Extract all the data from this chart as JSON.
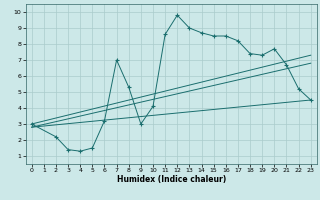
{
  "xlabel": "Humidex (Indice chaleur)",
  "bg_color": "#cce8e8",
  "grid_color": "#aacccc",
  "line_color": "#1a6e6e",
  "xlim": [
    -0.5,
    23.5
  ],
  "ylim": [
    0.5,
    10.5
  ],
  "xticks": [
    0,
    1,
    2,
    3,
    4,
    5,
    6,
    7,
    8,
    9,
    10,
    11,
    12,
    13,
    14,
    15,
    16,
    17,
    18,
    19,
    20,
    21,
    22,
    23
  ],
  "yticks": [
    1,
    2,
    3,
    4,
    5,
    6,
    7,
    8,
    9,
    10
  ],
  "curve_x": [
    0,
    2,
    3,
    4,
    5,
    6,
    7,
    8,
    9,
    10,
    11,
    12,
    13,
    14,
    15,
    16,
    17,
    18,
    19,
    20,
    21,
    22,
    23
  ],
  "curve_y": [
    3.0,
    2.2,
    1.4,
    1.3,
    1.5,
    3.2,
    7.0,
    5.3,
    3.0,
    4.1,
    8.6,
    9.8,
    9.0,
    8.7,
    8.5,
    8.5,
    8.2,
    7.4,
    7.3,
    7.7,
    6.7,
    5.2,
    4.5
  ],
  "line1_x": [
    0,
    23
  ],
  "line1_y": [
    3.0,
    7.3
  ],
  "line2_x": [
    0,
    23
  ],
  "line2_y": [
    2.8,
    6.8
  ],
  "line3_x": [
    0,
    23
  ],
  "line3_y": [
    2.8,
    4.5
  ]
}
